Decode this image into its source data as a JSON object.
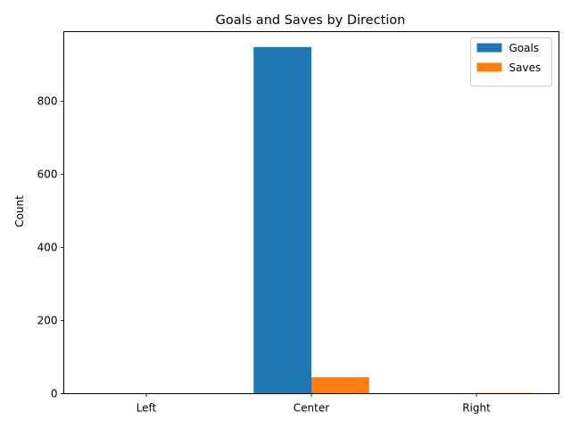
{
  "chart_data": {
    "type": "bar",
    "title": "Goals and Saves by Direction",
    "xlabel": "",
    "ylabel": "Count",
    "categories": [
      "Left",
      "Center",
      "Right"
    ],
    "series": [
      {
        "name": "Goals",
        "values": [
          0,
          948,
          0
        ],
        "color": "#1f77b4"
      },
      {
        "name": "Saves",
        "values": [
          0,
          45,
          2
        ],
        "color": "#ff7f0e"
      }
    ],
    "ylim": [
      0,
      990
    ],
    "yticks": [
      0,
      200,
      400,
      600,
      800
    ],
    "grid": false,
    "legend_position": "top-right"
  }
}
